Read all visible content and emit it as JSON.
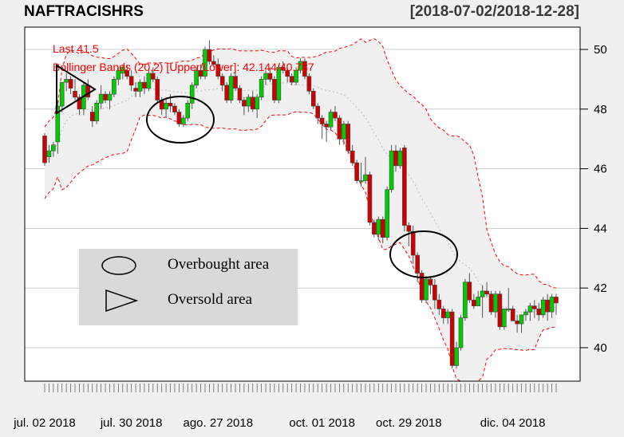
{
  "header": {
    "title": "NAFTRACISHRS",
    "date_range": "[2018-07-02/2018-12-28]"
  },
  "annotations": {
    "last": "Last 41.5",
    "bbands": "Bollinger Bands (20,2) [Upper/Lower]: 42.144/40.737"
  },
  "legend": {
    "items": [
      {
        "icon": "ellipse-icon",
        "label": "Overbought area"
      },
      {
        "icon": "triangle-icon",
        "label": "Oversold area"
      }
    ]
  },
  "colors": {
    "up": "#00cc00",
    "down": "#cc0000",
    "band": "#ff0000",
    "band_fill": "#f0f0f0",
    "ma": "#b0b0b0",
    "grid": "#cccccc"
  },
  "chart_data": {
    "type": "candlestick",
    "title": "NAFTRACISHRS",
    "subtitle": "[2018-07-02/2018-12-28]",
    "xlabel": "",
    "ylabel": "",
    "ylim": [
      38.9,
      50.8
    ],
    "y_ticks": [
      40,
      42,
      44,
      46,
      48,
      50
    ],
    "x_tick_labels": [
      "jul. 02 2018",
      "jul. 30 2018",
      "ago. 27 2018",
      "oct. 01 2018",
      "oct. 29 2018",
      "dic. 04 2018"
    ],
    "x_tick_index": [
      0,
      20,
      40,
      64,
      84,
      108
    ],
    "grid": true,
    "legend_position": "inside-left",
    "indicator": "Bollinger Bands (20,2)",
    "last": 41.5,
    "bb_upper_last": 42.144,
    "bb_lower_last": 40.737,
    "ohlc": [
      [
        47.1,
        47.2,
        46.1,
        46.2
      ],
      [
        46.4,
        46.8,
        46.2,
        46.6
      ],
      [
        46.6,
        46.9,
        46.4,
        46.8
      ],
      [
        46.9,
        48.3,
        46.5,
        48.1
      ],
      [
        48.1,
        48.9,
        47.9,
        48.9
      ],
      [
        48.9,
        49.2,
        48.6,
        49.0
      ],
      [
        49.0,
        49.1,
        48.5,
        48.7
      ],
      [
        48.6,
        49.0,
        48.3,
        48.4
      ],
      [
        48.4,
        48.5,
        47.8,
        48.0
      ],
      [
        48.0,
        48.9,
        47.8,
        48.8
      ],
      [
        48.8,
        49.0,
        48.3,
        48.4
      ],
      [
        47.9,
        48.1,
        47.4,
        47.6
      ],
      [
        47.6,
        48.3,
        47.5,
        48.2
      ],
      [
        48.2,
        48.8,
        48.0,
        48.5
      ],
      [
        48.5,
        48.6,
        48.2,
        48.3
      ],
      [
        48.3,
        48.6,
        48.0,
        48.5
      ],
      [
        48.5,
        49.1,
        48.4,
        49.0
      ],
      [
        49.0,
        49.4,
        48.8,
        49.3
      ],
      [
        49.2,
        49.5,
        49.0,
        49.4
      ],
      [
        49.3,
        49.5,
        49.0,
        49.1
      ],
      [
        49.1,
        49.3,
        48.6,
        48.8
      ],
      [
        48.7,
        48.9,
        48.4,
        48.6
      ],
      [
        48.6,
        49.0,
        48.4,
        48.9
      ],
      [
        48.9,
        49.1,
        48.5,
        48.7
      ],
      [
        48.7,
        49.3,
        48.6,
        49.2
      ],
      [
        49.2,
        49.4,
        48.9,
        49.0
      ],
      [
        49.0,
        49.1,
        48.2,
        48.3
      ],
      [
        48.3,
        48.4,
        47.8,
        48.0
      ],
      [
        48.0,
        48.4,
        47.7,
        48.2
      ],
      [
        48.2,
        48.5,
        47.9,
        48.1
      ],
      [
        48.1,
        48.2,
        47.8,
        47.9
      ],
      [
        47.9,
        48.0,
        47.4,
        47.5
      ],
      [
        47.5,
        47.8,
        47.4,
        47.7
      ],
      [
        47.7,
        48.3,
        47.6,
        48.2
      ],
      [
        48.2,
        48.9,
        48.0,
        48.8
      ],
      [
        48.8,
        49.4,
        48.7,
        49.3
      ],
      [
        49.3,
        49.5,
        49.0,
        49.1
      ],
      [
        49.1,
        50.1,
        49.0,
        50.0
      ],
      [
        50.0,
        50.3,
        49.5,
        49.6
      ],
      [
        49.6,
        49.8,
        49.4,
        49.5
      ],
      [
        49.5,
        49.7,
        49.0,
        49.1
      ],
      [
        49.1,
        49.2,
        48.6,
        48.8
      ],
      [
        48.8,
        48.9,
        48.2,
        48.3
      ],
      [
        48.3,
        49.2,
        48.2,
        49.1
      ],
      [
        49.1,
        49.3,
        48.6,
        48.7
      ],
      [
        48.7,
        48.8,
        48.2,
        48.3
      ],
      [
        48.3,
        48.4,
        47.8,
        48.1
      ],
      [
        48.1,
        48.5,
        47.9,
        48.4
      ],
      [
        48.4,
        48.6,
        47.9,
        48.0
      ],
      [
        48.0,
        48.5,
        47.7,
        48.4
      ],
      [
        48.4,
        49.1,
        48.3,
        49.0
      ],
      [
        49.0,
        49.3,
        48.8,
        49.2
      ],
      [
        49.2,
        49.4,
        48.9,
        49.0
      ],
      [
        49.0,
        49.1,
        48.2,
        48.3
      ],
      [
        48.3,
        49.5,
        48.2,
        49.4
      ],
      [
        49.4,
        49.6,
        49.2,
        49.3
      ],
      [
        49.3,
        49.4,
        48.9,
        49.1
      ],
      [
        49.1,
        49.2,
        48.8,
        48.9
      ],
      [
        48.9,
        49.4,
        48.8,
        49.3
      ],
      [
        49.3,
        49.7,
        49.2,
        49.6
      ],
      [
        49.6,
        49.7,
        49.0,
        49.1
      ],
      [
        49.1,
        49.2,
        48.5,
        48.6
      ],
      [
        48.6,
        48.7,
        48.0,
        48.1
      ],
      [
        48.1,
        48.2,
        47.5,
        47.7
      ],
      [
        47.7,
        47.8,
        47.0,
        47.5
      ],
      [
        47.5,
        47.6,
        46.9,
        47.4
      ],
      [
        47.4,
        48.0,
        47.3,
        47.9
      ],
      [
        47.9,
        48.1,
        47.6,
        47.7
      ],
      [
        47.7,
        47.8,
        46.8,
        47.0
      ],
      [
        47.0,
        47.6,
        46.8,
        47.5
      ],
      [
        47.5,
        47.6,
        46.5,
        46.6
      ],
      [
        46.6,
        46.8,
        46.1,
        46.2
      ],
      [
        46.2,
        46.3,
        45.5,
        45.6
      ],
      [
        45.6,
        46.2,
        45.4,
        45.6
      ],
      [
        45.6,
        46.4,
        45.5,
        45.8
      ],
      [
        45.8,
        45.9,
        44.1,
        44.2
      ],
      [
        44.2,
        44.3,
        43.7,
        43.8
      ],
      [
        43.8,
        44.4,
        43.6,
        44.3
      ],
      [
        44.3,
        44.4,
        43.5,
        43.7
      ],
      [
        43.7,
        45.4,
        43.6,
        45.3
      ],
      [
        45.3,
        46.8,
        45.2,
        46.6
      ],
      [
        46.6,
        46.8,
        45.9,
        46.1
      ],
      [
        46.1,
        46.7,
        46.0,
        46.6
      ],
      [
        46.7,
        46.8,
        43.9,
        44.1
      ],
      [
        44.1,
        44.2,
        43.4,
        43.9
      ],
      [
        43.9,
        44.1,
        42.8,
        43.1
      ],
      [
        43.1,
        43.2,
        42.2,
        42.5
      ],
      [
        42.5,
        42.6,
        41.5,
        41.6
      ],
      [
        41.6,
        42.4,
        41.5,
        42.3
      ],
      [
        42.3,
        42.4,
        41.8,
        42.1
      ],
      [
        42.1,
        42.3,
        41.3,
        41.6
      ],
      [
        41.6,
        41.8,
        41.1,
        41.3
      ],
      [
        41.3,
        41.4,
        40.8,
        41.0
      ],
      [
        41.0,
        41.3,
        40.8,
        41.2
      ],
      [
        41.2,
        41.3,
        39.3,
        39.4
      ],
      [
        39.4,
        40.2,
        39.3,
        40.0
      ],
      [
        40.0,
        41.1,
        39.9,
        41.0
      ],
      [
        41.0,
        42.3,
        40.9,
        42.2
      ],
      [
        42.2,
        42.5,
        41.5,
        41.6
      ],
      [
        41.6,
        41.8,
        41.3,
        41.4
      ],
      [
        41.4,
        41.9,
        41.5,
        41.7
      ],
      [
        41.7,
        42.1,
        41.0,
        41.9
      ],
      [
        41.9,
        42.2,
        41.7,
        41.8
      ],
      [
        41.8,
        41.9,
        41.1,
        41.2
      ],
      [
        41.2,
        41.9,
        41.0,
        41.8
      ],
      [
        41.8,
        41.9,
        40.6,
        40.7
      ],
      [
        40.7,
        41.3,
        40.6,
        41.3
      ],
      [
        41.3,
        42.0,
        41.2,
        41.3
      ],
      [
        41.3,
        41.4,
        40.9,
        40.9
      ],
      [
        40.9,
        41.1,
        40.5,
        40.8
      ],
      [
        40.8,
        41.1,
        40.5,
        41.1
      ],
      [
        41.1,
        41.3,
        40.9,
        41.2
      ],
      [
        41.2,
        41.5,
        40.9,
        41.4
      ],
      [
        41.4,
        41.6,
        41.0,
        41.3
      ],
      [
        41.3,
        41.5,
        40.9,
        41.1
      ],
      [
        41.1,
        41.7,
        41.0,
        41.6
      ],
      [
        41.6,
        41.8,
        40.9,
        41.2
      ],
      [
        41.2,
        41.8,
        41.0,
        41.7
      ],
      [
        41.7,
        41.8,
        41.1,
        41.5
      ]
    ]
  }
}
